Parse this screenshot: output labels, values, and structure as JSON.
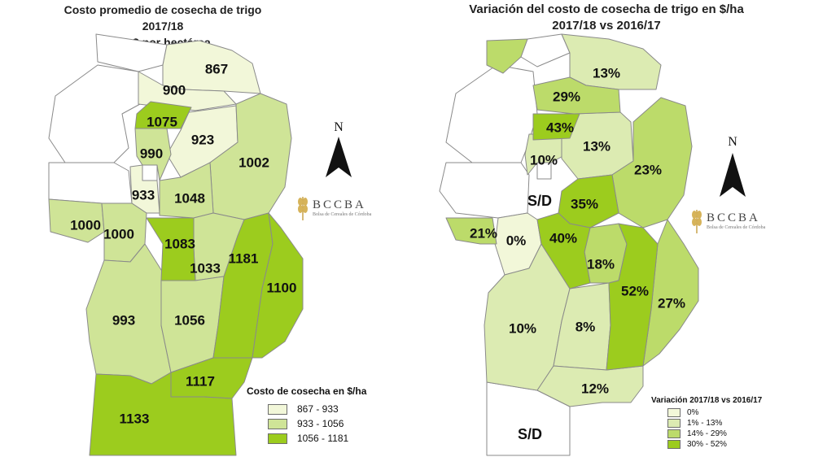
{
  "left_map": {
    "title_line1": "Costo promedio de cosecha de trigo 2017/18",
    "title_line2": "En $ por hectárea",
    "legend_title": "Costo de cosecha en $/ha",
    "legend": [
      {
        "label": "867 - 933",
        "color": "#f2f7d9"
      },
      {
        "label": "933 - 1056",
        "color": "#cfe497"
      },
      {
        "label": "1056 - 1181",
        "color": "#9ccc1e"
      }
    ],
    "values": [
      "867",
      "900",
      "1075",
      "923",
      "990",
      "1002",
      "933",
      "1048",
      "1000",
      "1000",
      "1083",
      "1033",
      "1181",
      "1100",
      "993",
      "1056",
      "1117",
      "1133"
    ]
  },
  "right_map": {
    "title_line1": "Variación del costo de cosecha de trigo en $/ha",
    "title_line2": "2017/18 vs 2016/17",
    "legend_title": "Variación 2017/18 vs 2016/17",
    "legend": [
      {
        "label": "0%",
        "color": "#f2f7d9"
      },
      {
        "label": "1% - 13%",
        "color": "#dcebb2"
      },
      {
        "label": "14% - 29%",
        "color": "#bcdb6a"
      },
      {
        "label": "30% - 52%",
        "color": "#9ccc1e"
      }
    ],
    "values": [
      "13%",
      "29%",
      "43%",
      "10%",
      "13%",
      "23%",
      "S/D",
      "35%",
      "21%",
      "0%",
      "40%",
      "18%",
      "52%",
      "27%",
      "10%",
      "8%",
      "12%",
      "S/D"
    ]
  },
  "north_label": "N",
  "logo": {
    "name": "BCCBA",
    "subtitle": "Bolsa de Cereales de Córdoba"
  },
  "colors": {
    "outline": "#8a8a8a",
    "text": "#111111",
    "no_data": "#ffffff"
  }
}
